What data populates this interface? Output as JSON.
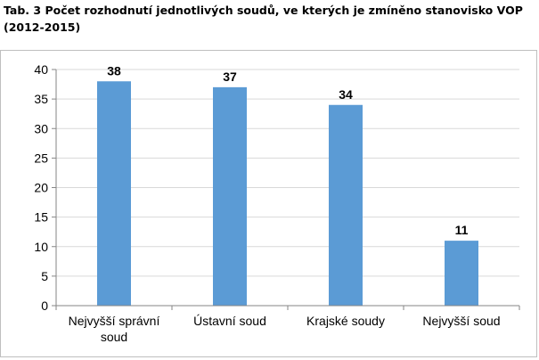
{
  "title": "Tab. 3 Počet rozhodnutí jednotlivých soudů, ve kterých je zmíněno stanovisko VOP (2012-2015)",
  "chart_data": {
    "type": "bar",
    "categories": [
      "Nejvyšší správní soud",
      "Ústavní soud",
      "Krajské soudy",
      "Nejvyšší soud"
    ],
    "category_lines": [
      [
        "Nejvyšší správní",
        "soud"
      ],
      [
        "Ústavní soud"
      ],
      [
        "Krajské soudy"
      ],
      [
        "Nejvyšší soud"
      ]
    ],
    "values": [
      38,
      37,
      34,
      11
    ],
    "data_labels": [
      "38",
      "37",
      "34",
      "11"
    ],
    "y_ticks": [
      "0",
      "5",
      "10",
      "15",
      "20",
      "25",
      "30",
      "35",
      "40"
    ],
    "ylim": [
      0,
      40
    ],
    "xlabel": "",
    "ylabel": "",
    "grid": true,
    "legend": "none",
    "bar_color": "#5b9bd5",
    "grid_color": "#d9d9d9",
    "axis_color": "#868686"
  }
}
